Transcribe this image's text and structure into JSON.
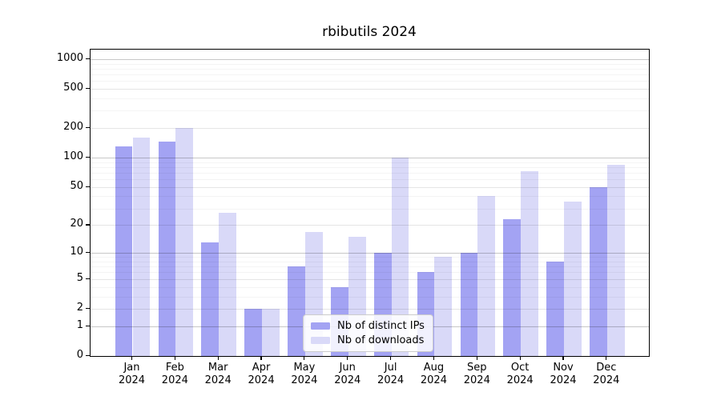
{
  "chart_data": {
    "type": "bar",
    "title": "rbibutils 2024",
    "year_label": "2024",
    "categories": [
      "Jan",
      "Feb",
      "Mar",
      "Apr",
      "May",
      "Jun",
      "Jul",
      "Aug",
      "Sep",
      "Oct",
      "Nov",
      "Dec"
    ],
    "series": [
      {
        "name": "Nb of distinct IPs",
        "color": "#a3a3f3",
        "values": [
          130,
          145,
          13,
          2,
          7,
          4,
          10,
          6,
          10,
          23,
          8,
          50
        ]
      },
      {
        "name": "Nb of downloads",
        "color": "#d9d9f8",
        "values": [
          160,
          199,
          27,
          2,
          17,
          15,
          100,
          9,
          40,
          73,
          35,
          84
        ]
      }
    ],
    "y_axis": {
      "scale": "log10(value+1)",
      "tick_values": [
        1000,
        500,
        200,
        100,
        50,
        20,
        10,
        5,
        2,
        1,
        0
      ],
      "tick_labels": [
        "1000",
        "500",
        "200",
        "100",
        "50",
        "20",
        "10",
        "5",
        "2",
        "1",
        "0"
      ]
    },
    "x_axis": {
      "label_line2": "2024"
    },
    "grid": {
      "decade_lines": [
        1,
        10,
        100,
        1000
      ],
      "sub_lines": [
        2,
        5,
        20,
        50,
        200,
        500
      ],
      "minor_lines": [
        3,
        4,
        6,
        7,
        8,
        9,
        30,
        40,
        60,
        70,
        80,
        90,
        300,
        400,
        600,
        700,
        800,
        900
      ]
    },
    "legend": {
      "position": "lower center",
      "entries": [
        "Nb of distinct IPs",
        "Nb of downloads"
      ]
    },
    "colors": {
      "bar_distinct_ips": "#a3a3f3",
      "bar_downloads": "#d9d9f8",
      "axis": "#000000",
      "background": "#ffffff"
    }
  }
}
